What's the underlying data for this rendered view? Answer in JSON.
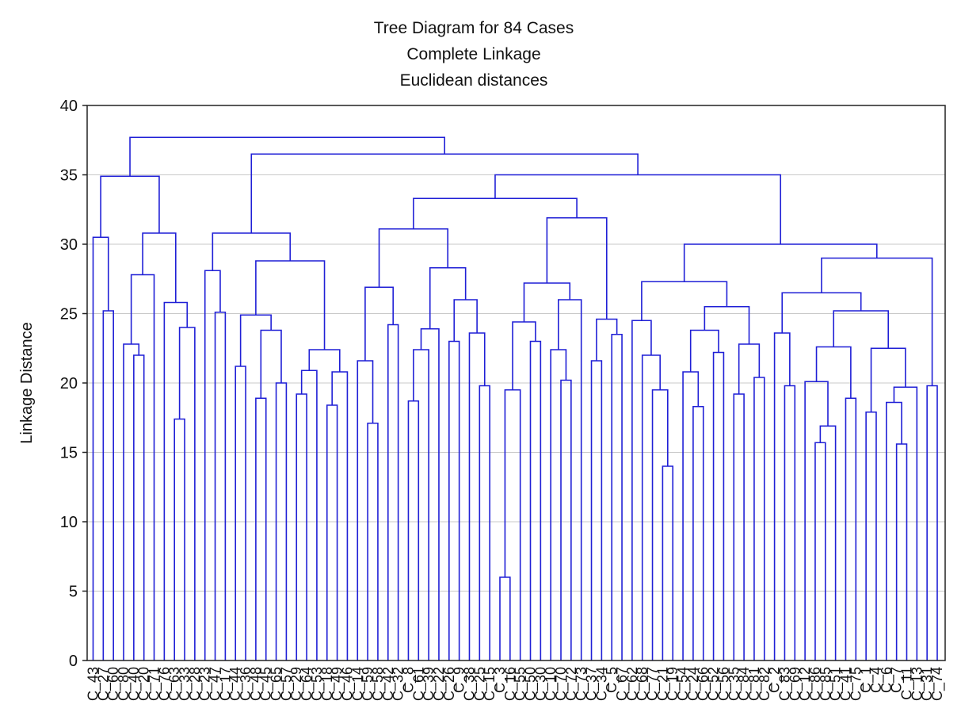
{
  "chart_data": {
    "type": "dendrogram",
    "title": "Tree Diagram for 84 Cases",
    "subtitle": [
      "Complete Linkage",
      "Euclidean distances"
    ],
    "y_label": "Linkage Distance",
    "ylim": [
      0,
      40
    ],
    "yticks": [
      0,
      5,
      10,
      15,
      20,
      25,
      30,
      35,
      40
    ],
    "grid": true,
    "color": "#1f1fd6",
    "tree": {
      "h": 37.7,
      "c": [
        {
          "h": 34.9,
          "c": [
            {
              "h": 30.5,
              "c": [
                "C_43",
                {
                  "h": 25.2,
                  "c": [
                    "C_27",
                    "C_60"
                  ]
                }
              ]
            },
            {
              "h": 30.8,
              "c": [
                {
                  "h": 27.8,
                  "c": [
                    {
                      "h": 22.8,
                      "c": [
                        "C_80",
                        {
                          "h": 22.0,
                          "c": [
                            "C_40",
                            "C_20"
                          ]
                        }
                      ]
                    },
                    "C_71"
                  ]
                },
                {
                  "h": 25.8,
                  "c": [
                    "C_76",
                    {
                      "h": 24.0,
                      "c": [
                        {
                          "h": 17.4,
                          "c": [
                            "C_63",
                            "C_33"
                          ]
                        },
                        "C_28"
                      ]
                    }
                  ]
                }
              ]
            }
          ]
        },
        {
          "h": 36.5,
          "c": [
            {
              "h": 30.8,
              "c": [
                {
                  "h": 28.1,
                  "c": [
                    "C_23",
                    {
                      "h": 25.1,
                      "c": [
                        "C_47",
                        "C_17"
                      ]
                    }
                  ]
                },
                {
                  "h": 28.8,
                  "c": [
                    {
                      "h": 24.9,
                      "c": [
                        {
                          "h": 21.2,
                          "c": [
                            "C_44",
                            "C_36"
                          ]
                        },
                        {
                          "h": 23.8,
                          "c": [
                            {
                              "h": 18.9,
                              "c": [
                                "C_48",
                                "C_45"
                              ]
                            },
                            {
                              "h": 20.0,
                              "c": [
                                "C_65",
                                "C_57"
                              ]
                            }
                          ]
                        }
                      ]
                    },
                    {
                      "h": 22.4,
                      "c": [
                        {
                          "h": 20.9,
                          "c": [
                            {
                              "h": 19.2,
                              "c": [
                                "C_29",
                                "C_64"
                              ]
                            },
                            "C_53"
                          ]
                        },
                        {
                          "h": 20.8,
                          "c": [
                            {
                              "h": 18.4,
                              "c": [
                                "C_18",
                                "C_49"
                              ]
                            },
                            "C_46"
                          ]
                        }
                      ]
                    }
                  ]
                }
              ]
            },
            {
              "h": 35.0,
              "c": [
                {
                  "h": 33.3,
                  "c": [
                    {
                      "h": 31.1,
                      "c": [
                        {
                          "h": 26.9,
                          "c": [
                            {
                              "h": 21.6,
                              "c": [
                                "C_14",
                                {
                                  "h": 17.1,
                                  "c": [
                                    "C_59",
                                    "C_58"
                                  ]
                                }
                              ]
                            },
                            {
                              "h": 24.2,
                              "c": [
                                "C_42",
                                "C_32"
                              ]
                            }
                          ]
                        },
                        {
                          "h": 28.3,
                          "c": [
                            {
                              "h": 23.9,
                              "c": [
                                {
                                  "h": 22.4,
                                  "c": [
                                    {
                                      "h": 18.7,
                                      "c": [
                                        "C_8",
                                        "C_61"
                                      ]
                                    },
                                    "C_39"
                                  ]
                                },
                                "C_22"
                              ]
                            },
                            {
                              "h": 26.0,
                              "c": [
                                {
                                  "h": 23.0,
                                  "c": [
                                    "C_26",
                                    "C_9"
                                  ]
                                },
                                {
                                  "h": 23.6,
                                  "c": [
                                    "C_38",
                                    {
                                      "h": 19.8,
                                      "c": [
                                        "C_25",
                                        "C_15"
                                      ]
                                    }
                                  ]
                                }
                              ]
                            }
                          ]
                        }
                      ]
                    },
                    {
                      "h": 31.9,
                      "c": [
                        {
                          "h": 27.2,
                          "c": [
                            {
                              "h": 24.4,
                              "c": [
                                {
                                  "h": 19.5,
                                  "c": [
                                    {
                                      "h": 6.0,
                                      "c": [
                                        "C_3",
                                        "C_16"
                                      ]
                                    },
                                    "C_55"
                                  ]
                                },
                                {
                                  "h": 23.0,
                                  "c": [
                                    "C_50",
                                    "C_30"
                                  ]
                                }
                              ]
                            },
                            {
                              "h": 26.0,
                              "c": [
                                {
                                  "h": 22.4,
                                  "c": [
                                    "C_10",
                                    {
                                      "h": 20.2,
                                      "c": [
                                        "C_70",
                                        "C_72"
                                      ]
                                    }
                                  ]
                                },
                                "C_73"
                              ]
                            }
                          ]
                        },
                        {
                          "h": 24.6,
                          "c": [
                            {
                              "h": 21.6,
                              "c": [
                                "C_37",
                                "C_34"
                              ]
                            },
                            {
                              "h": 23.5,
                              "c": [
                                "C_5",
                                "C_67"
                              ]
                            }
                          ]
                        }
                      ]
                    }
                  ]
                },
                {
                  "h": 30.0,
                  "c": [
                    {
                      "h": 27.3,
                      "c": [
                        {
                          "h": 24.5,
                          "c": [
                            "C_62",
                            {
                              "h": 22.0,
                              "c": [
                                "C_68",
                                {
                                  "h": 19.5,
                                  "c": [
                                    "C_77",
                                    {
                                      "h": 14.0,
                                      "c": [
                                        "C_21",
                                        "C_19"
                                      ]
                                    }
                                  ]
                                }
                              ]
                            }
                          ]
                        },
                        {
                          "h": 25.5,
                          "c": [
                            {
                              "h": 23.8,
                              "c": [
                                {
                                  "h": 20.8,
                                  "c": [
                                    "C_54",
                                    {
                                      "h": 18.3,
                                      "c": [
                                        "C_24",
                                        "C_66"
                                      ]
                                    }
                                  ]
                                },
                                {
                                  "h": 22.2,
                                  "c": [
                                    "C_52",
                                    "C_56"
                                  ]
                                }
                              ]
                            },
                            {
                              "h": 22.8,
                              "c": [
                                {
                                  "h": 19.2,
                                  "c": [
                                    "C_35",
                                    "C_84"
                                  ]
                                },
                                {
                                  "h": 20.4,
                                  "c": [
                                    "C_81",
                                    "C_82"
                                  ]
                                }
                              ]
                            }
                          ]
                        }
                      ]
                    },
                    {
                      "h": 29.0,
                      "c": [
                        {
                          "h": 26.5,
                          "c": [
                            {
                              "h": 23.6,
                              "c": [
                                "C_2",
                                {
                                  "h": 19.8,
                                  "c": [
                                    "C_83",
                                    "C_69"
                                  ]
                                }
                              ]
                            },
                            {
                              "h": 25.2,
                              "c": [
                                {
                                  "h": 22.6,
                                  "c": [
                                    {
                                      "h": 20.1,
                                      "c": [
                                        "C_12",
                                        {
                                          "h": 16.9,
                                          "c": [
                                            {
                                              "h": 15.7,
                                              "c": [
                                                "C_86",
                                                "C_85"
                                              ]
                                            },
                                            "C_51"
                                          ]
                                        }
                                      ]
                                    },
                                    {
                                      "h": 18.9,
                                      "c": [
                                        "C_41",
                                        "C_75"
                                      ]
                                    }
                                  ]
                                },
                                {
                                  "h": 22.5,
                                  "c": [
                                    {
                                      "h": 17.9,
                                      "c": [
                                        "C_1",
                                        "C_4"
                                      ]
                                    },
                                    {
                                      "h": 19.7,
                                      "c": [
                                        {
                                          "h": 18.6,
                                          "c": [
                                            "C_6",
                                            {
                                              "h": 15.6,
                                              "c": [
                                                "C_7",
                                                "C_11"
                                              ]
                                            }
                                          ]
                                        },
                                        "C_13"
                                      ]
                                    }
                                  ]
                                }
                              ]
                            }
                          ]
                        },
                        {
                          "h": 19.8,
                          "c": [
                            "C_31",
                            "C_74"
                          ]
                        }
                      ]
                    }
                  ]
                }
              ]
            }
          ]
        }
      ]
    }
  }
}
